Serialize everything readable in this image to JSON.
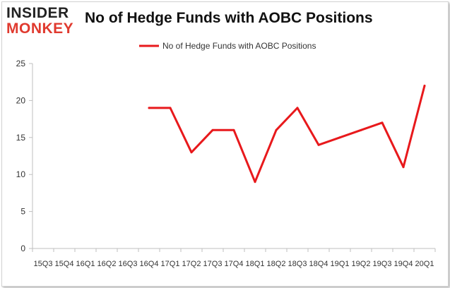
{
  "logo": {
    "top": "INSIDER",
    "bottom": "MONKEY"
  },
  "chart_data": {
    "type": "line",
    "title": "No of Hedge Funds with AOBC Positions",
    "xlabel": "",
    "ylabel": "",
    "ylim": [
      0,
      25
    ],
    "yticks": [
      0,
      5,
      10,
      15,
      20,
      25
    ],
    "categories": [
      "2015Q3",
      "2015Q4",
      "2016Q1",
      "2016Q2",
      "2016Q3",
      "2016Q4",
      "2017Q1",
      "2017Q2",
      "2017Q3",
      "2017Q4",
      "2018Q1",
      "2018Q2",
      "2018Q3",
      "2018Q4",
      "2019Q1",
      "2019Q2",
      "2019Q3",
      "2019Q4",
      "2020Q1"
    ],
    "tick_labels": [
      "15Q3",
      "15Q4",
      "16Q1",
      "16Q2",
      "16Q3",
      "16Q4",
      "17Q1",
      "17Q2",
      "17Q3",
      "17Q4",
      "18Q1",
      "18Q2",
      "18Q3",
      "18Q4",
      "19Q1",
      "19Q2",
      "19Q3",
      "19Q4",
      "20Q1"
    ],
    "series": [
      {
        "name": "No of Hedge Funds with AOBC Positions",
        "color": "#e8191c",
        "values": [
          null,
          null,
          null,
          null,
          null,
          19,
          19,
          13,
          16,
          16,
          9,
          16,
          19,
          14,
          15,
          16,
          17,
          11,
          22
        ]
      }
    ],
    "legend_position": "top-center",
    "grid": false
  }
}
